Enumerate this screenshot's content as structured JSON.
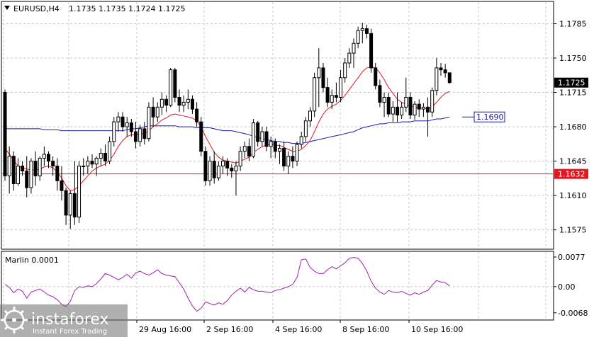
{
  "header": {
    "symbol": "EURUSD,H4",
    "ohlc": "1.1735 1.1735 1.1724 1.1725"
  },
  "indicator": {
    "name": "Marlin 0.0001",
    "ticks": [
      "0.0077",
      "0.00",
      "-0.0068"
    ]
  },
  "watermark": {
    "brand": "instaforex",
    "tagline": "Instant Forex Trading"
  },
  "colors": {
    "up_candle": "#ffffff",
    "down_candle": "#000000",
    "ma_fast": "#e8141e",
    "ma_slow": "#1a1aa8",
    "level_line": "#e8141e",
    "oscillator": "#a020b0",
    "grid": "#c8c8c8"
  },
  "chart_data": {
    "type": "candlestick",
    "price_axis": {
      "ticks": [
        "1.1785",
        "1.1750",
        "1.1715",
        "1.1680",
        "1.1645",
        "1.1610",
        "1.1575"
      ],
      "ylim": [
        1.1556,
        1.1807
      ]
    },
    "time_axis": {
      "labels": [
        "29 Aug 16:00",
        "2 Sep 16:00",
        "4 Sep 16:00",
        "8 Sep 16:00",
        "10 Sep 16:00"
      ]
    },
    "current_price": "1.1725",
    "levels": [
      {
        "label": "1.1690",
        "value": 1.169,
        "color": "#1a1aa8"
      },
      {
        "label": "1.1632",
        "value": 1.1632,
        "color": "#e8141e"
      }
    ],
    "candles": [
      [
        1.1715,
        1.1718,
        1.1625,
        1.163
      ],
      [
        1.163,
        1.166,
        1.1612,
        1.165
      ],
      [
        1.165,
        1.1655,
        1.1615,
        1.1622
      ],
      [
        1.1622,
        1.1648,
        1.162,
        1.164
      ],
      [
        1.164,
        1.1645,
        1.163,
        1.1635
      ],
      [
        1.1635,
        1.165,
        1.1608,
        1.1618
      ],
      [
        1.1618,
        1.1648,
        1.1612,
        1.1645
      ],
      [
        1.1645,
        1.1655,
        1.162,
        1.163
      ],
      [
        1.163,
        1.165,
        1.1625,
        1.1648
      ],
      [
        1.1648,
        1.166,
        1.164,
        1.1652
      ],
      [
        1.1652,
        1.1655,
        1.1638,
        1.1645
      ],
      [
        1.1645,
        1.165,
        1.163,
        1.164
      ],
      [
        1.164,
        1.1648,
        1.1615,
        1.1625
      ],
      [
        1.1625,
        1.164,
        1.1605,
        1.1615
      ],
      [
        1.1615,
        1.1618,
        1.158,
        1.159
      ],
      [
        1.159,
        1.1615,
        1.1576,
        1.1612
      ],
      [
        1.1612,
        1.1645,
        1.158,
        1.1588
      ],
      [
        1.1588,
        1.1645,
        1.1582,
        1.164
      ],
      [
        1.164,
        1.1648,
        1.163,
        1.164
      ],
      [
        1.164,
        1.165,
        1.1632,
        1.1645
      ],
      [
        1.1645,
        1.1652,
        1.1638,
        1.1642
      ],
      [
        1.1642,
        1.165,
        1.163,
        1.1648
      ],
      [
        1.1648,
        1.1658,
        1.164,
        1.1653
      ],
      [
        1.1653,
        1.1662,
        1.164,
        1.1645
      ],
      [
        1.1645,
        1.167,
        1.1642,
        1.1665
      ],
      [
        1.1665,
        1.169,
        1.166,
        1.1685
      ],
      [
        1.1685,
        1.1695,
        1.1675,
        1.169
      ],
      [
        1.169,
        1.1695,
        1.1675,
        1.168
      ],
      [
        1.168,
        1.169,
        1.167,
        1.1684
      ],
      [
        1.1684,
        1.1688,
        1.167,
        1.1675
      ],
      [
        1.1675,
        1.1685,
        1.1658,
        1.1665
      ],
      [
        1.1665,
        1.1682,
        1.166,
        1.1678
      ],
      [
        1.1678,
        1.1685,
        1.1662,
        1.1668
      ],
      [
        1.1668,
        1.1705,
        1.1665,
        1.17
      ],
      [
        1.17,
        1.171,
        1.168,
        1.169
      ],
      [
        1.169,
        1.1705,
        1.1685,
        1.17
      ],
      [
        1.17,
        1.1715,
        1.1692,
        1.1708
      ],
      [
        1.1708,
        1.1712,
        1.1695,
        1.1702
      ],
      [
        1.1702,
        1.174,
        1.17,
        1.1738
      ],
      [
        1.1738,
        1.174,
        1.1705,
        1.171
      ],
      [
        1.171,
        1.1718,
        1.1695,
        1.1702
      ],
      [
        1.1702,
        1.1712,
        1.1695,
        1.1705
      ],
      [
        1.1705,
        1.1718,
        1.1698,
        1.1708
      ],
      [
        1.1708,
        1.1712,
        1.1693,
        1.1698
      ],
      [
        1.1698,
        1.1705,
        1.168,
        1.1685
      ],
      [
        1.1685,
        1.169,
        1.165,
        1.1655
      ],
      [
        1.1655,
        1.166,
        1.162,
        1.1625
      ],
      [
        1.1625,
        1.165,
        1.162,
        1.1645
      ],
      [
        1.1645,
        1.1655,
        1.1622,
        1.1628
      ],
      [
        1.1628,
        1.1645,
        1.1625,
        1.164
      ],
      [
        1.164,
        1.165,
        1.1632,
        1.1645
      ],
      [
        1.1645,
        1.1648,
        1.163,
        1.1638
      ],
      [
        1.1638,
        1.1642,
        1.1628,
        1.1635
      ],
      [
        1.1635,
        1.1645,
        1.161,
        1.164
      ],
      [
        1.164,
        1.166,
        1.1635,
        1.1655
      ],
      [
        1.1655,
        1.1665,
        1.1648,
        1.166
      ],
      [
        1.166,
        1.1668,
        1.1645,
        1.165
      ],
      [
        1.165,
        1.1688,
        1.1648,
        1.1684
      ],
      [
        1.1684,
        1.1686,
        1.166,
        1.1665
      ],
      [
        1.1665,
        1.168,
        1.166,
        1.1675
      ],
      [
        1.1675,
        1.168,
        1.1655,
        1.166
      ],
      [
        1.166,
        1.167,
        1.1648,
        1.1665
      ],
      [
        1.1665,
        1.1668,
        1.1648,
        1.1655
      ],
      [
        1.1655,
        1.1662,
        1.1642,
        1.1658
      ],
      [
        1.1658,
        1.1665,
        1.1635,
        1.164
      ],
      [
        1.164,
        1.1655,
        1.1632,
        1.165
      ],
      [
        1.165,
        1.166,
        1.1638,
        1.1645
      ],
      [
        1.1645,
        1.1665,
        1.164,
        1.1662
      ],
      [
        1.1662,
        1.1675,
        1.1658,
        1.167
      ],
      [
        1.167,
        1.169,
        1.1665,
        1.1686
      ],
      [
        1.1686,
        1.17,
        1.168,
        1.1696
      ],
      [
        1.1696,
        1.1735,
        1.169,
        1.173
      ],
      [
        1.173,
        1.176,
        1.17,
        1.174
      ],
      [
        1.174,
        1.1745,
        1.1715,
        1.172
      ],
      [
        1.172,
        1.173,
        1.17,
        1.1705
      ],
      [
        1.1705,
        1.1718,
        1.1698,
        1.1712
      ],
      [
        1.1712,
        1.1725,
        1.1705,
        1.171
      ],
      [
        1.171,
        1.1738,
        1.1705,
        1.173
      ],
      [
        1.173,
        1.175,
        1.1725,
        1.1745
      ],
      [
        1.1745,
        1.176,
        1.174,
        1.1755
      ],
      [
        1.1755,
        1.177,
        1.174,
        1.1765
      ],
      [
        1.1765,
        1.1782,
        1.176,
        1.1778
      ],
      [
        1.1778,
        1.1786,
        1.1765,
        1.178
      ],
      [
        1.178,
        1.1784,
        1.177,
        1.1775
      ],
      [
        1.1775,
        1.178,
        1.1735,
        1.174
      ],
      [
        1.174,
        1.1745,
        1.1718,
        1.1722
      ],
      [
        1.1722,
        1.1728,
        1.17,
        1.1705
      ],
      [
        1.1705,
        1.1715,
        1.169,
        1.171
      ],
      [
        1.171,
        1.1715,
        1.169,
        1.1693
      ],
      [
        1.1693,
        1.1706,
        1.1685,
        1.17
      ],
      [
        1.17,
        1.1715,
        1.1685,
        1.1692
      ],
      [
        1.1692,
        1.1705,
        1.1688,
        1.17
      ],
      [
        1.17,
        1.173,
        1.1695,
        1.171
      ],
      [
        1.171,
        1.1715,
        1.1688,
        1.1692
      ],
      [
        1.1692,
        1.1706,
        1.1687,
        1.1703
      ],
      [
        1.1703,
        1.1708,
        1.169,
        1.1698
      ],
      [
        1.1698,
        1.1704,
        1.169,
        1.17
      ],
      [
        1.17,
        1.171,
        1.167,
        1.1695
      ],
      [
        1.1695,
        1.172,
        1.169,
        1.1717
      ],
      [
        1.1717,
        1.175,
        1.1712,
        1.174
      ],
      [
        1.174,
        1.1745,
        1.1732,
        1.1738
      ],
      [
        1.1738,
        1.1744,
        1.173,
        1.1735
      ],
      [
        1.1735,
        1.1735,
        1.1724,
        1.1725
      ]
    ],
    "ma_fast": [
      1.1658,
      1.1652,
      1.1646,
      1.164,
      1.1638,
      1.1637,
      1.1636,
      1.1636,
      1.1637,
      1.1639,
      1.164,
      1.1638,
      1.1634,
      1.1628,
      1.162,
      1.1615,
      1.1616,
      1.162,
      1.1625,
      1.163,
      1.1635,
      1.1638,
      1.164,
      1.1642,
      1.1646,
      1.1652,
      1.166,
      1.1666,
      1.167,
      1.1672,
      1.1672,
      1.1673,
      1.1673,
      1.1676,
      1.168,
      1.1683,
      1.1687,
      1.1689,
      1.1692,
      1.1693,
      1.1692,
      1.1691,
      1.169,
      1.1689,
      1.1686,
      1.168,
      1.167,
      1.1662,
      1.1654,
      1.1649,
      1.1646,
      1.1645,
      1.1644,
      1.1643,
      1.1645,
      1.1647,
      1.1649,
      1.1654,
      1.1657,
      1.166,
      1.1661,
      1.1662,
      1.1661,
      1.1661,
      1.1659,
      1.1657,
      1.1655,
      1.1655,
      1.1657,
      1.1661,
      1.1666,
      1.1675,
      1.1685,
      1.1693,
      1.1698,
      1.1701,
      1.1703,
      1.1707,
      1.1712,
      1.1718,
      1.1724,
      1.173,
      1.1736,
      1.174,
      1.1741,
      1.174,
      1.1735,
      1.1728,
      1.172,
      1.1714,
      1.1708,
      1.1705,
      1.1703,
      1.1701,
      1.17,
      1.1699,
      1.1699,
      1.1698,
      1.17,
      1.1705,
      1.171,
      1.1714,
      1.1716
    ],
    "ma_slow": [
      1.1678,
      1.1678,
      1.1678,
      1.1678,
      1.1678,
      1.1678,
      1.1678,
      1.1678,
      1.1678,
      1.1677,
      1.1677,
      1.1677,
      1.1677,
      1.1676,
      1.1676,
      1.1676,
      1.1676,
      1.1676,
      1.1676,
      1.1676,
      1.1676,
      1.1676,
      1.1676,
      1.1676,
      1.1676,
      1.1676,
      1.1676,
      1.1676,
      1.1677,
      1.1678,
      1.1678,
      1.1679,
      1.168,
      1.1681,
      1.1681,
      1.1681,
      1.1681,
      1.1681,
      1.1681,
      1.1681,
      1.168,
      1.168,
      1.168,
      1.168,
      1.1679,
      1.1679,
      1.1679,
      1.1679,
      1.1678,
      1.1677,
      1.1676,
      1.1676,
      1.1676,
      1.1675,
      1.1674,
      1.1673,
      1.1672,
      1.167,
      1.1669,
      1.1668,
      1.1667,
      1.1666,
      1.1665,
      1.1665,
      1.1664,
      1.1664,
      1.1663,
      1.1663,
      1.1663,
      1.1664,
      1.1665,
      1.1666,
      1.1667,
      1.1668,
      1.1669,
      1.167,
      1.1671,
      1.1672,
      1.1673,
      1.1674,
      1.1675,
      1.1677,
      1.1679,
      1.168,
      1.1681,
      1.1682,
      1.1683,
      1.1683,
      1.1684,
      1.1684,
      1.1684,
      1.1685,
      1.1685,
      1.1685,
      1.1686,
      1.1686,
      1.1686,
      1.1686,
      1.1687,
      1.1688,
      1.1688,
      1.1689,
      1.169
    ],
    "oscillator": [
      0.0006,
      -0.0002,
      -0.0016,
      -0.0006,
      -0.0012,
      -0.003,
      -0.0014,
      -0.001,
      -0.0006,
      -0.0014,
      -0.0022,
      -0.0026,
      -0.0034,
      -0.0046,
      -0.0052,
      -0.0038,
      -0.001,
      0.0,
      -0.0002,
      0.0002,
      0.0,
      0.0008,
      0.002,
      0.0034,
      0.003,
      0.0024,
      0.0018,
      0.0024,
      0.0032,
      0.0022,
      0.0036,
      0.004,
      0.0034,
      0.003,
      0.0036,
      0.0044,
      0.0034,
      0.003,
      0.0028,
      0.0026,
      0.001,
      -0.0006,
      -0.003,
      -0.005,
      -0.0064,
      -0.0056,
      -0.004,
      -0.0044,
      -0.0048,
      -0.0042,
      -0.0046,
      -0.0036,
      -0.0022,
      -0.0012,
      -0.0004,
      -0.0014,
      -0.0002,
      -0.0008,
      -0.0012,
      -0.0012,
      -0.0014,
      -0.0016,
      -0.001,
      -0.0008,
      -0.0004,
      0.0,
      0.0006,
      0.0024,
      0.007,
      0.0072,
      0.005,
      0.004,
      0.0034,
      0.0034,
      0.0044,
      0.0052,
      0.0046,
      0.0054,
      0.0062,
      0.0074,
      0.0076,
      0.0074,
      0.006,
      0.004,
      0.0014,
      -0.0004,
      -0.0014,
      -0.002,
      -0.001,
      -0.0014,
      -0.0016,
      -0.0012,
      -0.0018,
      -0.0022,
      -0.0016,
      -0.002,
      -0.0014,
      -0.001,
      0.0004,
      0.0016,
      0.0012,
      0.001,
      0.0002
    ],
    "oscillator_ylim": [
      -0.0085,
      0.009
    ]
  }
}
